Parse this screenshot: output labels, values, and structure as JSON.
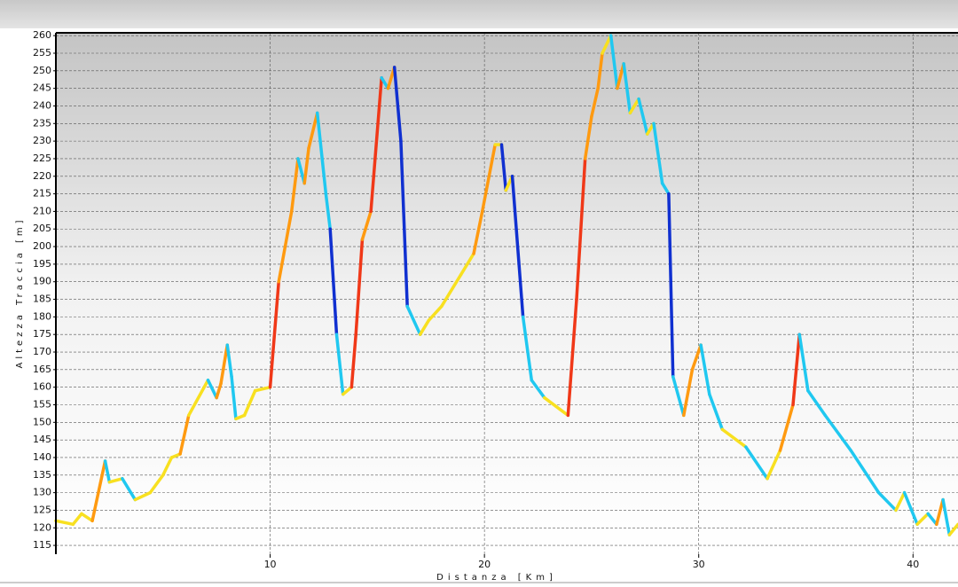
{
  "chart_data": {
    "type": "line",
    "x_label": "Distanza [Km]",
    "y_label": "Altezza Traccia [m]",
    "x": [
      0,
      0.8,
      1.2,
      1.7,
      2.3,
      2.5,
      3.1,
      3.7,
      4.4,
      5.0,
      5.4,
      5.8,
      6.2,
      7.1,
      7.5,
      7.7,
      8.0,
      8.2,
      8.4,
      8.8,
      9.3,
      10.0,
      10.4,
      10.7,
      11.0,
      11.3,
      11.6,
      11.8,
      12.2,
      12.6,
      12.8,
      13.1,
      13.4,
      13.8,
      14.0,
      14.3,
      14.7,
      15.2,
      15.5,
      15.8,
      16.1,
      16.4,
      17.0,
      17.4,
      18.0,
      18.9,
      19.5,
      19.9,
      20.5,
      20.8,
      21.0,
      21.3,
      21.8,
      22.2,
      22.8,
      23.9,
      24.3,
      24.7,
      25.0,
      25.3,
      25.5,
      25.9,
      26.2,
      26.5,
      26.8,
      27.2,
      27.6,
      27.9,
      28.3,
      28.6,
      28.8,
      29.3,
      29.7,
      30.1,
      30.5,
      31.1,
      32.2,
      33.2,
      33.8,
      34.4,
      34.7,
      35.1,
      35.9,
      37.1,
      38.4,
      39.2,
      39.6,
      40.2,
      40.7,
      41.1,
      41.4,
      41.7,
      42.1
    ],
    "y": [
      122,
      121,
      124,
      122,
      139,
      133,
      134,
      128,
      130,
      135,
      140,
      141,
      152,
      162,
      157,
      161,
      172,
      163,
      151,
      152,
      159,
      160,
      190,
      200,
      210,
      225,
      218,
      228,
      238,
      215,
      205,
      175,
      158,
      160,
      175,
      202,
      210,
      248,
      245,
      251,
      230,
      183,
      175,
      179,
      183,
      192,
      198,
      210,
      229,
      229,
      216,
      220,
      180,
      162,
      157,
      152,
      185,
      225,
      237,
      245,
      255,
      260,
      245,
      252,
      238,
      242,
      232,
      235,
      218,
      215,
      163,
      152,
      165,
      172,
      158,
      148,
      143,
      134,
      142,
      155,
      175,
      159,
      152,
      142,
      130,
      125,
      130,
      121,
      124,
      121,
      128,
      118,
      121
    ],
    "slope_colors": [
      "#1030d0",
      "#20c8f0",
      "#f8e020",
      "#ff9a10",
      "#f03818"
    ],
    "xlim": [
      0,
      42.1
    ],
    "ylim": [
      112.5,
      260.8
    ],
    "xticks": [
      10,
      20,
      30,
      40
    ],
    "yticks": [
      115,
      120,
      125,
      130,
      135,
      140,
      145,
      150,
      155,
      160,
      165,
      170,
      175,
      180,
      185,
      190,
      195,
      200,
      205,
      210,
      215,
      220,
      225,
      230,
      235,
      240,
      245,
      250,
      255,
      260
    ],
    "grid": true
  }
}
